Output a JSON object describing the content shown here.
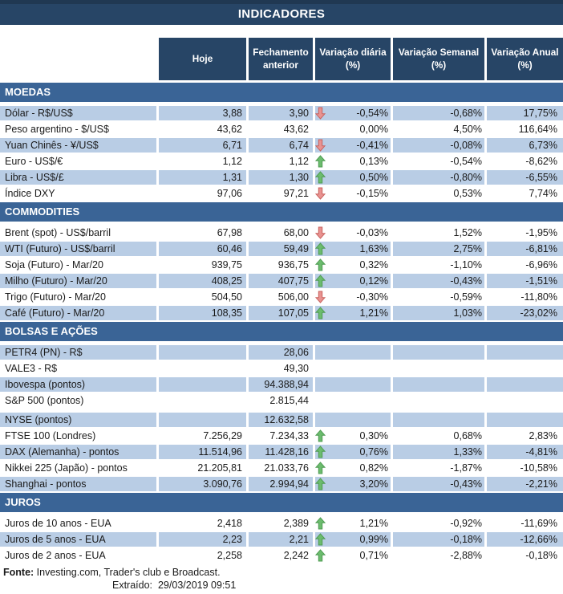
{
  "title": "INDICADORES",
  "columns": [
    "Hoje",
    "Fechamento anterior",
    "Variação diária (%)",
    "Variação Semanal (%)",
    "Variação Anual (%)"
  ],
  "icons": {
    "up": "green-block-arrow-up-icon",
    "down": "red-block-arrow-down-icon"
  },
  "colors": {
    "title_bar": "#274566",
    "header_cell": "#274566",
    "section_bar": "#3A6496",
    "row_shaded": "#B9CDE5",
    "body_text": "#1A1A1A",
    "header_text": "#FFFFFF",
    "arrow_up_fill": "#6CBC6E",
    "arrow_up_border": "#4E9B52",
    "arrow_down_fill": "#E99391",
    "arrow_down_border": "#C8625E"
  },
  "sections": [
    {
      "name": "MOEDAS",
      "zebra_start": "shaded",
      "rows": [
        {
          "label": "Dólar - R$/US$",
          "hoje": "3,88",
          "fechamento": "3,90",
          "trend": "down",
          "diaria": "-0,54%",
          "semanal": "-0,68%",
          "anual": "17,75%"
        },
        {
          "label": "Peso argentino - $/US$",
          "hoje": "43,62",
          "fechamento": "43,62",
          "trend": "none",
          "diaria": "0,00%",
          "semanal": "4,50%",
          "anual": "116,64%"
        },
        {
          "label": "Yuan Chinês - ¥/US$",
          "hoje": "6,71",
          "fechamento": "6,74",
          "trend": "down",
          "diaria": "-0,41%",
          "semanal": "-0,08%",
          "anual": "6,73%"
        },
        {
          "label": "Euro - US$/€",
          "hoje": "1,12",
          "fechamento": "1,12",
          "trend": "up",
          "diaria": "0,13%",
          "semanal": "-0,54%",
          "anual": "-8,62%"
        },
        {
          "label": "Libra - US$/£",
          "hoje": "1,31",
          "fechamento": "1,30",
          "trend": "up",
          "diaria": "0,50%",
          "semanal": "-0,80%",
          "anual": "-6,55%"
        },
        {
          "label": "Índice DXY",
          "hoje": "97,06",
          "fechamento": "97,21",
          "trend": "down",
          "diaria": "-0,15%",
          "semanal": "0,53%",
          "anual": "7,74%"
        }
      ]
    },
    {
      "name": "COMMODITIES",
      "zebra_start": "plain",
      "rows": [
        {
          "label": "Brent (spot) - US$/barril",
          "hoje": "67,98",
          "fechamento": "68,00",
          "trend": "down",
          "diaria": "-0,03%",
          "semanal": "1,52%",
          "anual": "-1,95%"
        },
        {
          "label": "WTI (Futuro) - US$/barril",
          "hoje": "60,46",
          "fechamento": "59,49",
          "trend": "up",
          "diaria": "1,63%",
          "semanal": "2,75%",
          "anual": "-6,81%"
        },
        {
          "label": "Soja (Futuro) - Mar/20",
          "hoje": "939,75",
          "fechamento": "936,75",
          "trend": "up",
          "diaria": "0,32%",
          "semanal": "-1,10%",
          "anual": "-6,96%"
        },
        {
          "label": "Milho (Futuro) - Mar/20",
          "hoje": "408,25",
          "fechamento": "407,75",
          "trend": "up",
          "diaria": "0,12%",
          "semanal": "-0,43%",
          "anual": "-1,51%"
        },
        {
          "label": "Trigo (Futuro) - Mar/20",
          "hoje": "504,50",
          "fechamento": "506,00",
          "trend": "down",
          "diaria": "-0,30%",
          "semanal": "-0,59%",
          "anual": "-11,80%"
        },
        {
          "label": "Café (Futuro) - Mar/20",
          "hoje": "108,35",
          "fechamento": "107,05",
          "trend": "up",
          "diaria": "1,21%",
          "semanal": "1,03%",
          "anual": "-23,02%"
        }
      ]
    },
    {
      "name": "BOLSAS E AÇÕES",
      "zebra_start": "shaded",
      "rows": [
        {
          "label": "PETR4 (PN) - R$",
          "hoje": "",
          "fechamento": "28,06",
          "trend": "none",
          "diaria": "",
          "semanal": "",
          "anual": ""
        },
        {
          "label": "VALE3 - R$",
          "hoje": "",
          "fechamento": "49,30",
          "trend": "none",
          "diaria": "",
          "semanal": "",
          "anual": ""
        },
        {
          "label": "Ibovespa (pontos)",
          "hoje": "",
          "fechamento": "94.388,94",
          "trend": "none",
          "diaria": "",
          "semanal": "",
          "anual": ""
        },
        {
          "label": "S&P 500 (pontos)",
          "hoje": "",
          "fechamento": "2.815,44",
          "trend": "none",
          "diaria": "",
          "semanal": "",
          "anual": ""
        },
        {
          "separator": true
        },
        {
          "label": "NYSE (pontos)",
          "hoje": "",
          "fechamento": "12.632,58",
          "trend": "none",
          "diaria": "",
          "semanal": "",
          "anual": ""
        },
        {
          "label": "FTSE 100 (Londres)",
          "hoje": "7.256,29",
          "fechamento": "7.234,33",
          "trend": "up",
          "diaria": "0,30%",
          "semanal": "0,68%",
          "anual": "2,83%"
        },
        {
          "label": "DAX (Alemanha) - pontos",
          "hoje": "11.514,96",
          "fechamento": "11.428,16",
          "trend": "up",
          "diaria": "0,76%",
          "semanal": "1,33%",
          "anual": "-4,81%"
        },
        {
          "label": "Nikkei 225 (Japão) - pontos",
          "hoje": "21.205,81",
          "fechamento": "21.033,76",
          "trend": "up",
          "diaria": "0,82%",
          "semanal": "-1,87%",
          "anual": "-10,58%"
        },
        {
          "label": "Shanghai - pontos",
          "hoje": "3.090,76",
          "fechamento": "2.994,94",
          "trend": "up",
          "diaria": "3,20%",
          "semanal": "-0,43%",
          "anual": "-2,21%"
        }
      ]
    },
    {
      "name": "JUROS",
      "zebra_start": "plain",
      "rows": [
        {
          "label": "Juros de 10 anos - EUA",
          "hoje": "2,418",
          "fechamento": "2,389",
          "trend": "up",
          "diaria": "1,21%",
          "semanal": "-0,92%",
          "anual": "-11,69%"
        },
        {
          "label": "Juros de 5 anos - EUA",
          "hoje": "2,23",
          "fechamento": "2,21",
          "trend": "up",
          "diaria": "0,99%",
          "semanal": "-0,18%",
          "anual": "-12,66%"
        },
        {
          "label": "Juros de 2 anos - EUA",
          "hoje": "2,258",
          "fechamento": "2,242",
          "trend": "up",
          "diaria": "0,71%",
          "semanal": "-2,88%",
          "anual": "-0,18%"
        }
      ]
    }
  ],
  "footer": {
    "source_label": "Fonte:",
    "source_text": " Investing.com, Trader's club e Broadcast.",
    "extracted_label": "Extraído:",
    "extracted_value": "29/03/2019 09:51"
  }
}
